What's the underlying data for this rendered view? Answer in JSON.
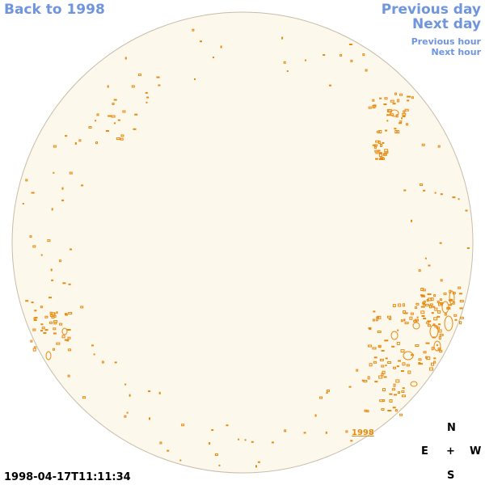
{
  "nav": {
    "back": "Back to 1998",
    "previous_day": "Previous day",
    "next_day": "Next day",
    "previous_hour": "Previous hour",
    "next_hour": "Next hour"
  },
  "disk_label": "1998",
  "compass": {
    "north": "N",
    "east": "E",
    "center": "+",
    "west": "W",
    "south": "S"
  },
  "timestamp": "1998-04-17T11:11:34",
  "colors": {
    "disk_fill": "#fdf8ec",
    "disk_edge": "#c8bca8",
    "region": "#e88a10",
    "link": "#6f95dc"
  }
}
